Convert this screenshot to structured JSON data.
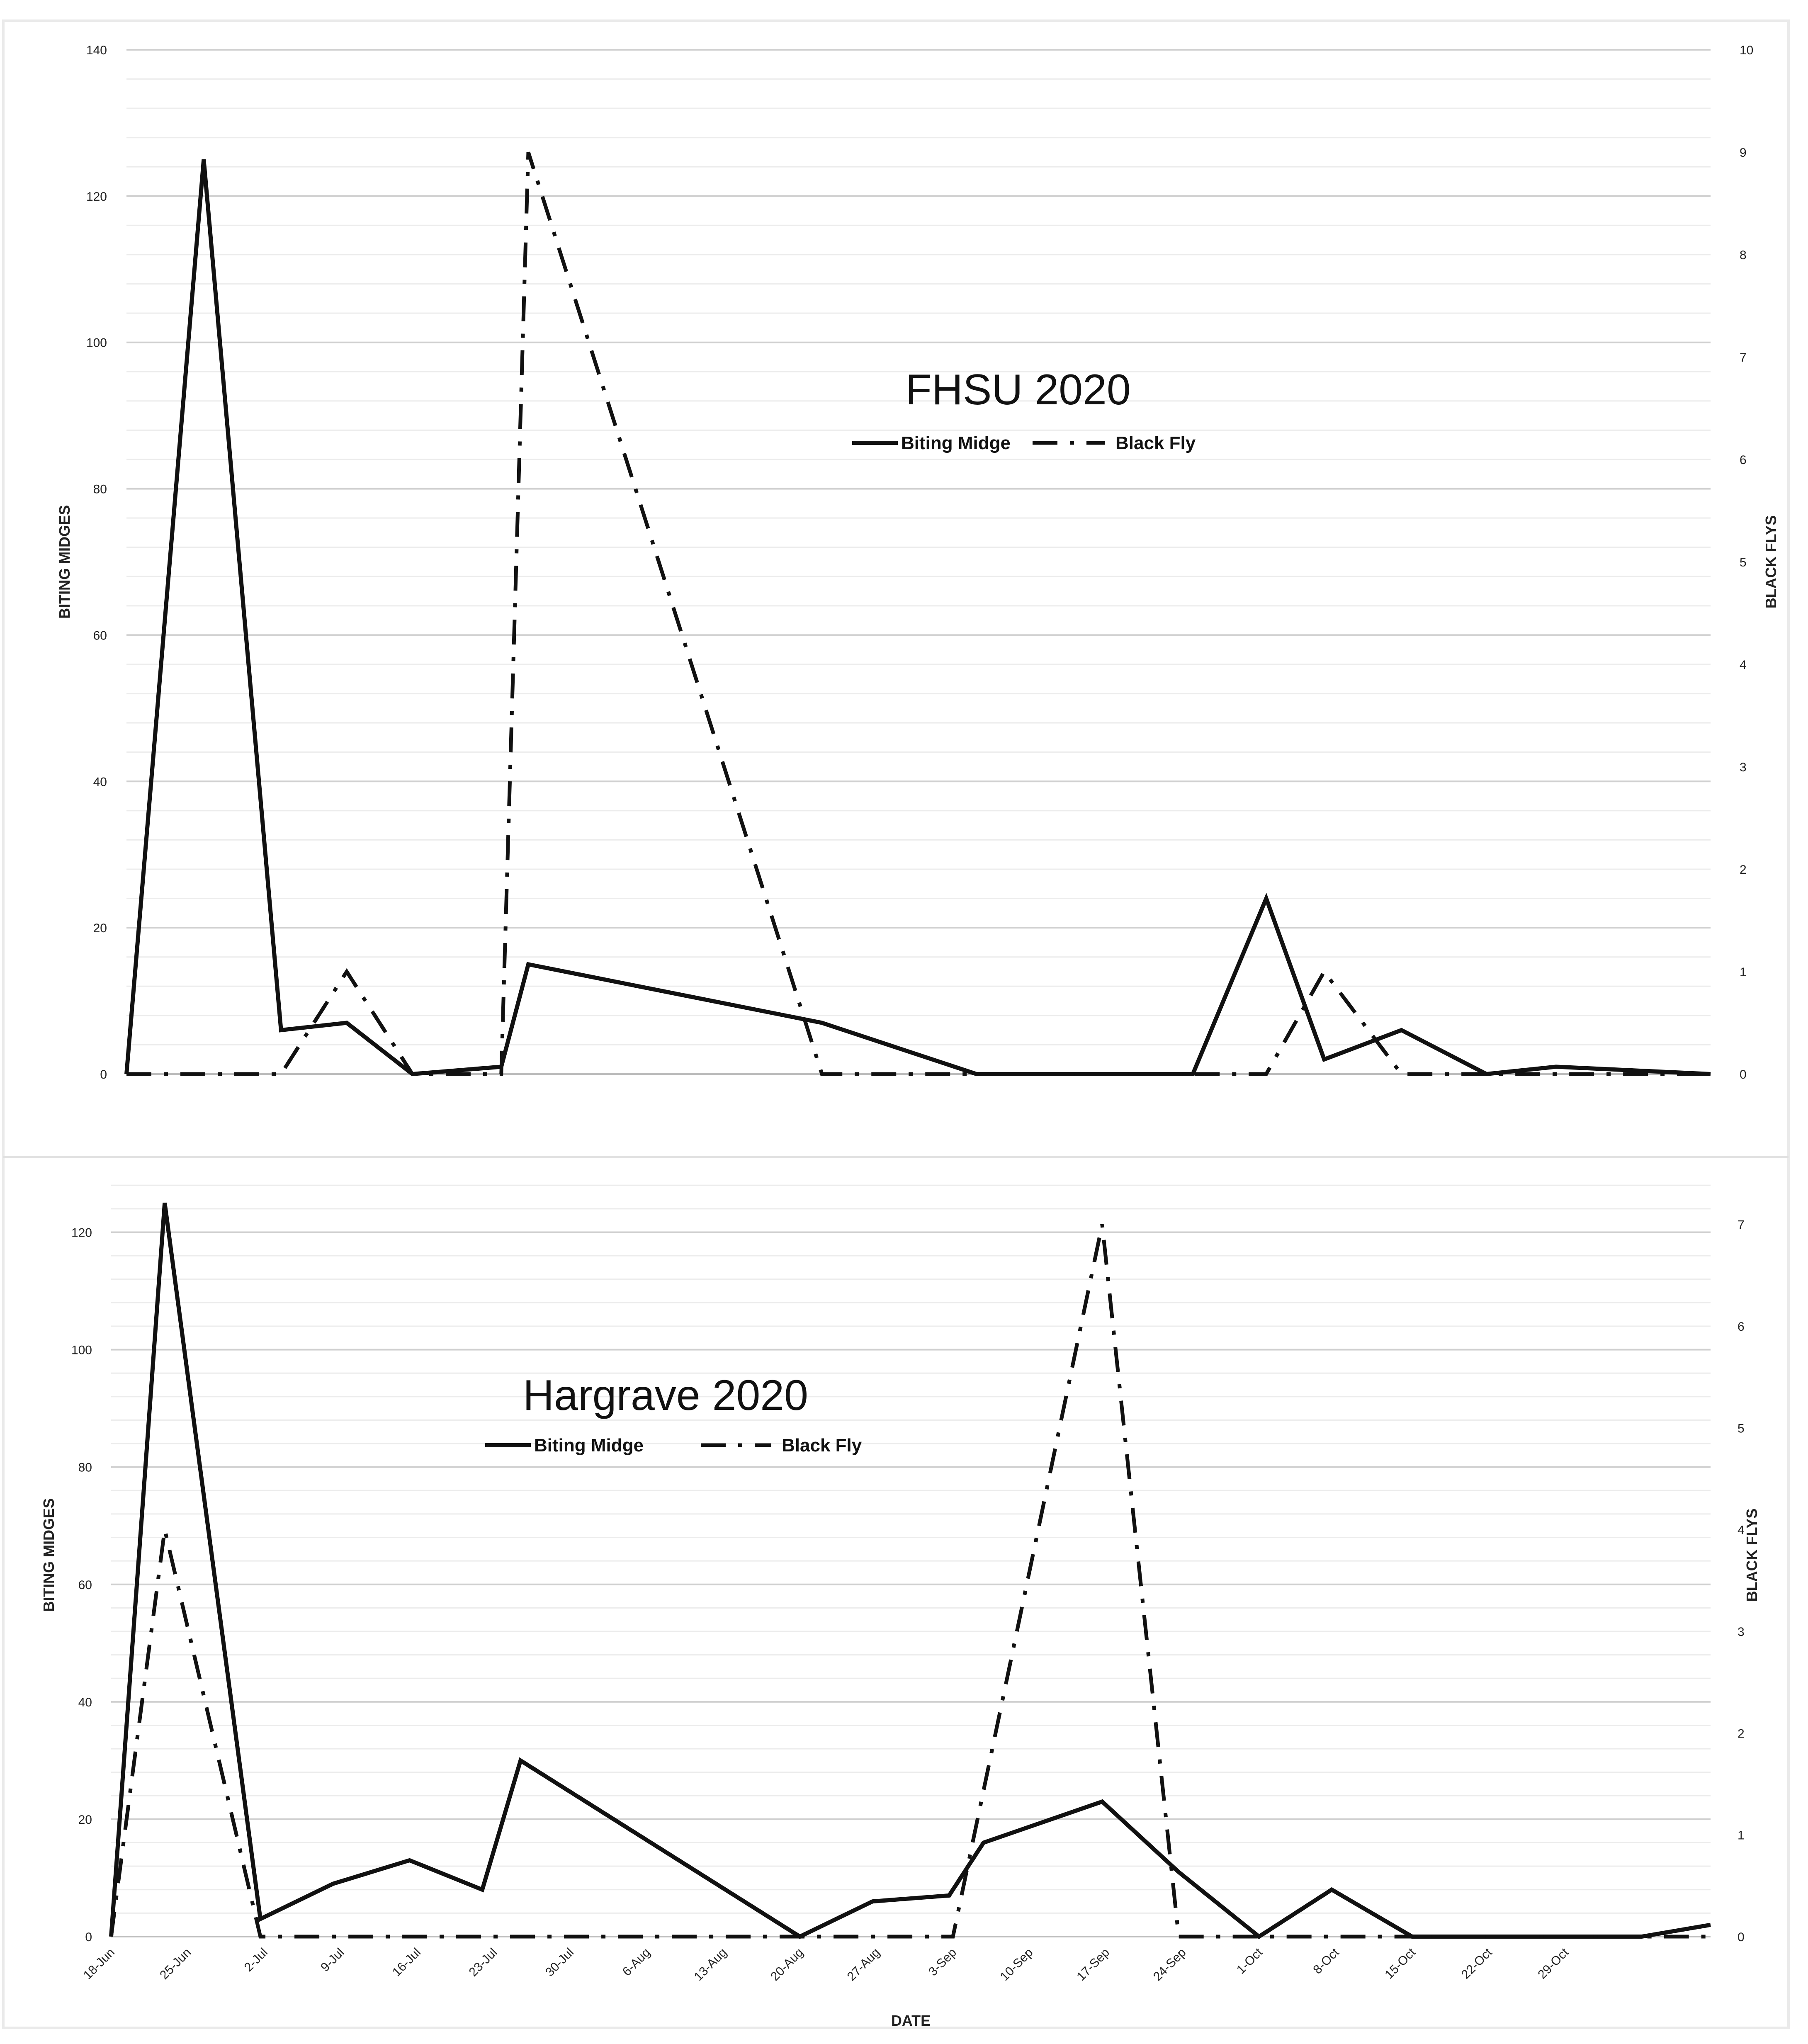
{
  "chart_data": [
    {
      "type": "line",
      "title": "FHSU 2020",
      "xlabel": "",
      "ylabel": "BITING MIDGES",
      "y2label": "BLACK FLYS",
      "ylim": [
        0,
        140
      ],
      "y2lim": [
        0,
        10
      ],
      "yticks": [
        0,
        20,
        40,
        60,
        80,
        100,
        120,
        140
      ],
      "y2ticks": [
        0,
        1,
        2,
        3,
        4,
        5,
        6,
        7,
        8,
        9,
        10
      ],
      "grid": true,
      "legend": "top-center",
      "series": [
        {
          "name": "Biting Midge",
          "axis": "left",
          "style": "solid",
          "x": [
            0,
            1,
            2,
            2.85,
            3.7,
            4.85,
            5.2,
            9,
            11,
            13.8,
            14.75,
            15.5,
            16.5,
            17.6,
            18.5,
            20.5
          ],
          "values": [
            0,
            125,
            6,
            7,
            0,
            1,
            15,
            7,
            0,
            0,
            24,
            2,
            6,
            0,
            1,
            0
          ]
        },
        {
          "name": "Black Fly",
          "axis": "right",
          "style": "dash-dot",
          "x": [
            0,
            1,
            2,
            2.85,
            3.7,
            4.85,
            5.2,
            9,
            11,
            13.8,
            14.75,
            15.5,
            16.5,
            17.6,
            18.5,
            20.5
          ],
          "values": [
            0,
            0,
            0,
            1,
            0,
            0,
            9,
            0,
            0,
            0,
            0,
            1,
            0,
            0,
            0,
            0
          ]
        }
      ]
    },
    {
      "type": "line",
      "title": "Hargrave 2020",
      "xlabel": "DATE",
      "ylabel": "BITING MIDGES",
      "y2label": "BLACK FLYS",
      "ylim": [
        0,
        130
      ],
      "y2lim": [
        0,
        7.5
      ],
      "yticks": [
        0,
        20,
        40,
        60,
        80,
        100,
        120
      ],
      "y2ticks": [
        0,
        1,
        2,
        3,
        4,
        5,
        6,
        7
      ],
      "categories": [
        "18-Jun",
        "25-Jun",
        "2-Jul",
        "9-Jul",
        "16-Jul",
        "23-Jul",
        "30-Jul",
        "6-Aug",
        "13-Aug",
        "20-Aug",
        "27-Aug",
        "3-Sep",
        "10-Sep",
        "17-Sep",
        "24-Sep",
        "1-Oct",
        "8-Oct",
        "15-Oct",
        "22-Oct",
        "29-Oct"
      ],
      "grid": true,
      "legend": "upper-left",
      "series": [
        {
          "name": "Biting Midge",
          "axis": "left",
          "style": "solid",
          "x": [
            0,
            0.7,
            1.95,
            2.9,
            3.9,
            4.85,
            5.35,
            9,
            9.95,
            10.95,
            11.4,
            12.95,
            13.95,
            15,
            15.95,
            17,
            20,
            20.9
          ],
          "values": [
            0,
            125,
            3,
            9,
            13,
            8,
            30,
            0,
            6,
            7,
            16,
            23,
            11,
            0,
            8,
            0,
            0,
            2
          ]
        },
        {
          "name": "Black Fly",
          "axis": "right",
          "style": "dash-dot",
          "x": [
            0,
            0.7,
            1.95,
            11,
            12.95,
            13.95,
            20.9
          ],
          "values": [
            0,
            4,
            0,
            0,
            7,
            0,
            0
          ]
        }
      ]
    }
  ]
}
